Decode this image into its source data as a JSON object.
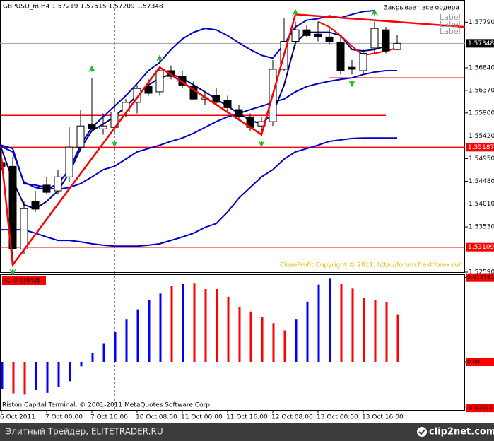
{
  "header": "GBPUSD_m,H4  1.57219 1.57515 1.57209 1.57348",
  "labels": [
    "Label",
    "Label",
    "Label"
  ],
  "expert_comment": "Закрывает все ордера",
  "copyright": "CloseProfit Copyright © 2011, http://forum.freshforex.ru/",
  "terminal": "Riston Capital Terminal, © 2001-2011 MetaQuotes Software Corp.",
  "footer": {
    "left": "Элитный Трейдер, ELITETRADER.RU",
    "right": "clip2net.com"
  },
  "chart_data": [
    {
      "type": "candlestick",
      "categories": [
        "6 Oct 2011",
        null,
        null,
        null,
        "7 Oct 00:00",
        null,
        null,
        null,
        "7 Oct 16:00",
        null,
        null,
        null,
        "10 Oct 08:00",
        null,
        null,
        null,
        "11 Oct 00:00",
        null,
        null,
        null,
        "11 Oct 16:00",
        null,
        null,
        null,
        "12 Oct 08:00",
        null,
        null,
        null,
        "13 Oct 00:00",
        null,
        null,
        null,
        "13 Oct 16:00",
        null,
        null,
        null
      ],
      "open": [
        1.5487,
        1.5479,
        1.5307,
        1.5406,
        1.544,
        1.5428,
        1.5457,
        1.5519,
        1.5566,
        1.5557,
        1.556,
        1.5592,
        1.5612,
        1.5645,
        1.5634,
        1.5678,
        1.5666,
        1.5645,
        1.5619,
        1.5626,
        1.5616,
        1.5597,
        1.5582,
        1.5563,
        1.5572,
        1.5681,
        1.5739,
        1.5763,
        1.5754,
        1.5748,
        1.5736,
        1.5685,
        1.5678,
        1.5725,
        1.5763,
        1.57219
      ],
      "high": [
        1.5509,
        1.5498,
        1.5406,
        1.5428,
        1.5457,
        1.5472,
        1.556,
        1.5597,
        1.5663,
        1.5589,
        1.5619,
        1.5619,
        1.5648,
        1.566,
        1.5685,
        1.5689,
        1.5678,
        1.5656,
        1.5634,
        1.5641,
        1.5626,
        1.5607,
        1.5589,
        1.5582,
        1.57,
        1.5788,
        1.578,
        1.5773,
        1.578,
        1.5766,
        1.5751,
        1.57,
        1.5722,
        1.578,
        1.5769,
        1.57515
      ],
      "low": [
        1.5472,
        1.5278,
        1.5296,
        1.5384,
        1.5421,
        1.5421,
        1.5446,
        1.5509,
        1.5553,
        1.5545,
        1.5545,
        1.5582,
        1.5589,
        1.5626,
        1.5626,
        1.566,
        1.5641,
        1.5616,
        1.5607,
        1.5607,
        1.5592,
        1.5575,
        1.5553,
        1.5545,
        1.5563,
        1.5678,
        1.5729,
        1.5748,
        1.5739,
        1.5733,
        1.567,
        1.567,
        1.567,
        1.5714,
        1.5714,
        1.57209
      ],
      "close": [
        1.5479,
        1.5307,
        1.5391,
        1.539,
        1.5425,
        1.5457,
        1.5519,
        1.5563,
        1.5557,
        1.5563,
        1.5592,
        1.5612,
        1.5641,
        1.5631,
        1.5678,
        1.5666,
        1.5648,
        1.5619,
        1.5622,
        1.5612,
        1.5601,
        1.5582,
        1.556,
        1.5572,
        1.5681,
        1.5739,
        1.5763,
        1.5751,
        1.5748,
        1.5739,
        1.5678,
        1.5681,
        1.5714,
        1.5766,
        1.5719,
        1.57348
      ],
      "up_color": "#ffffff",
      "down_color": "#000000",
      "ylim": [
        1.5259,
        1.5825
      ],
      "yticks": [
        {
          "value": 1.5779,
          "label": "1.57790"
        },
        {
          "value": 1.5684,
          "label": "1.56840"
        },
        {
          "value": 1.5637,
          "label": "1.56370"
        },
        {
          "value": 1.559,
          "label": "1.55900"
        },
        {
          "value": 1.5542,
          "label": "1.55420"
        },
        {
          "value": 1.5495,
          "label": "1.54950"
        },
        {
          "value": 1.5448,
          "label": "1.54480"
        },
        {
          "value": 1.5401,
          "label": "1.54010"
        },
        {
          "value": 1.5353,
          "label": "1.53530"
        },
        {
          "value": 1.5259,
          "label": "1.52590"
        }
      ],
      "current_price": 1.57348,
      "levels": [
        1.55187,
        1.53109
      ],
      "level_color": "#ff0000",
      "segments": [
        {
          "value": 1.5585,
          "x": [
            0,
            34
          ]
        },
        {
          "value": 1.5663,
          "x": [
            29,
            41
          ]
        }
      ],
      "series": [
        {
          "color": "#0000cc",
          "values": [
            1.552,
            1.5509,
            1.5446,
            1.5435,
            1.5431,
            1.5443,
            1.5472,
            1.5523,
            1.556,
            1.5582,
            1.5604,
            1.5626,
            1.5651,
            1.5678,
            1.5695,
            1.5722,
            1.5744,
            1.5758,
            1.5766,
            1.5763,
            1.5751,
            1.5736,
            1.5722,
            1.571,
            1.5704,
            1.5733,
            1.5769,
            1.5783,
            1.5786,
            1.5792,
            1.5788,
            1.5795,
            1.5801,
            1.5803,
            null,
            null
          ]
        },
        {
          "color": "#0000cc",
          "values": [
            1.5523,
            1.5516,
            1.5443,
            1.544,
            1.5435,
            1.5431,
            1.5435,
            1.5443,
            1.5457,
            1.5472,
            1.5479,
            1.5494,
            1.5509,
            1.5516,
            1.5523,
            1.5531,
            1.5538,
            1.5548,
            1.556,
            1.5572,
            1.5582,
            1.5589,
            1.5597,
            1.5604,
            1.5612,
            1.5619,
            1.5634,
            1.5645,
            1.5651,
            1.5656,
            1.566,
            1.5663,
            1.567,
            1.5675,
            1.5678,
            1.5678
          ]
        },
        {
          "color": "#0000cc",
          "values": [
            1.5347,
            1.5347,
            1.5347,
            1.534,
            1.5332,
            1.5325,
            1.5325,
            1.5322,
            1.5318,
            1.5315,
            1.5313,
            1.5313,
            1.5313,
            1.5315,
            1.5318,
            1.5325,
            1.5332,
            1.534,
            1.5352,
            1.536,
            1.5384,
            1.5413,
            1.5435,
            1.5457,
            1.5472,
            1.5494,
            1.5509,
            1.5516,
            1.5523,
            1.5531,
            1.5534,
            1.5537,
            1.5538,
            1.5538,
            1.5538,
            1.5538
          ]
        },
        {
          "color": "#000080",
          "values": [
            1.5516,
            1.545,
            1.5399,
            1.5391,
            1.5406,
            1.5428,
            1.5465,
            1.5516,
            1.5553,
            1.5567,
            1.5582,
            1.5604,
            1.5626,
            1.5648,
            1.5663,
            1.567,
            1.5663,
            1.5648,
            1.5634,
            1.5619,
            1.5604,
            1.5589,
            1.5575,
            1.5567,
            1.5589,
            1.5648,
            1.5736,
            1.5758,
            1.5758,
            1.5758,
            1.5751,
            1.5722,
            1.5719,
            1.5722,
            1.5729,
            null
          ]
        },
        {
          "color": "#ff0000",
          "values": [
            null,
            null,
            null,
            null,
            null,
            null,
            null,
            null,
            null,
            null,
            null,
            null,
            null,
            null,
            null,
            null,
            null,
            null,
            null,
            null,
            null,
            null,
            null,
            null,
            null,
            null,
            null,
            null,
            1.578,
            1.5769,
            1.5751,
            1.5729,
            1.571,
            1.5714,
            1.5719,
            1.5725
          ]
        }
      ],
      "zigzag": {
        "color": "#ff0000",
        "x": [
          0,
          1,
          14,
          23,
          26
        ],
        "values": [
          1.5497,
          1.5274,
          1.5685,
          1.5545,
          1.5795
        ]
      },
      "trendline": {
        "color": "#ff0000",
        "x": [
          26,
          41
        ],
        "values": [
          1.5795,
          1.5769
        ]
      },
      "fractals_up": {
        "color": "#22bb22",
        "x": [
          8,
          14,
          26,
          33
        ],
        "values": [
          1.5663,
          1.5685,
          1.578,
          1.578
        ]
      },
      "fractals_down": {
        "color": "#22bb22",
        "x": [
          1,
          10,
          23,
          31
        ],
        "values": [
          1.5278,
          1.5545,
          1.5545,
          1.567
        ]
      }
    },
    {
      "type": "bar",
      "title": "AO 0.010436",
      "values": [
        -0.006,
        -0.007,
        -0.0073,
        -0.0063,
        -0.0069,
        -0.0056,
        -0.0043,
        -0.001,
        0.002,
        0.004,
        0.0066,
        0.0094,
        0.0117,
        0.0138,
        0.0152,
        0.0169,
        0.0173,
        0.0174,
        0.0162,
        0.0162,
        0.0145,
        0.0121,
        0.0112,
        0.0099,
        0.0086,
        0.007,
        0.0094,
        0.0134,
        0.0172,
        0.0185,
        0.0173,
        0.0163,
        0.0143,
        0.0138,
        0.0132,
        0.010436
      ],
      "colors": [
        "#0000ff",
        "#ff0000",
        "#ff0000",
        "#0000ff",
        "#0000ff",
        "#0000ff",
        "#0000ff",
        "#0000ff",
        "#0000ff",
        "#0000ff",
        "#0000ff",
        "#0000ff",
        "#0000ff",
        "#0000ff",
        "#0000ff",
        "#ff0000",
        "#0000ff",
        "#ff0000",
        "#ff0000",
        "#ff0000",
        "#ff0000",
        "#ff0000",
        "#ff0000",
        "#ff0000",
        "#ff0000",
        "#ff0000",
        "#0000ff",
        "#0000ff",
        "#0000ff",
        "#0000ff",
        "#ff0000",
        "#ff0000",
        "#ff0000",
        "#ff0000",
        "#ff0000",
        "#ff0000"
      ],
      "ylim": [
        -0.0107,
        0.0195
      ],
      "yticks": [
        0.018761,
        {
          "value": 0,
          "label": "0.00"
        },
        -0.01025
      ]
    }
  ]
}
